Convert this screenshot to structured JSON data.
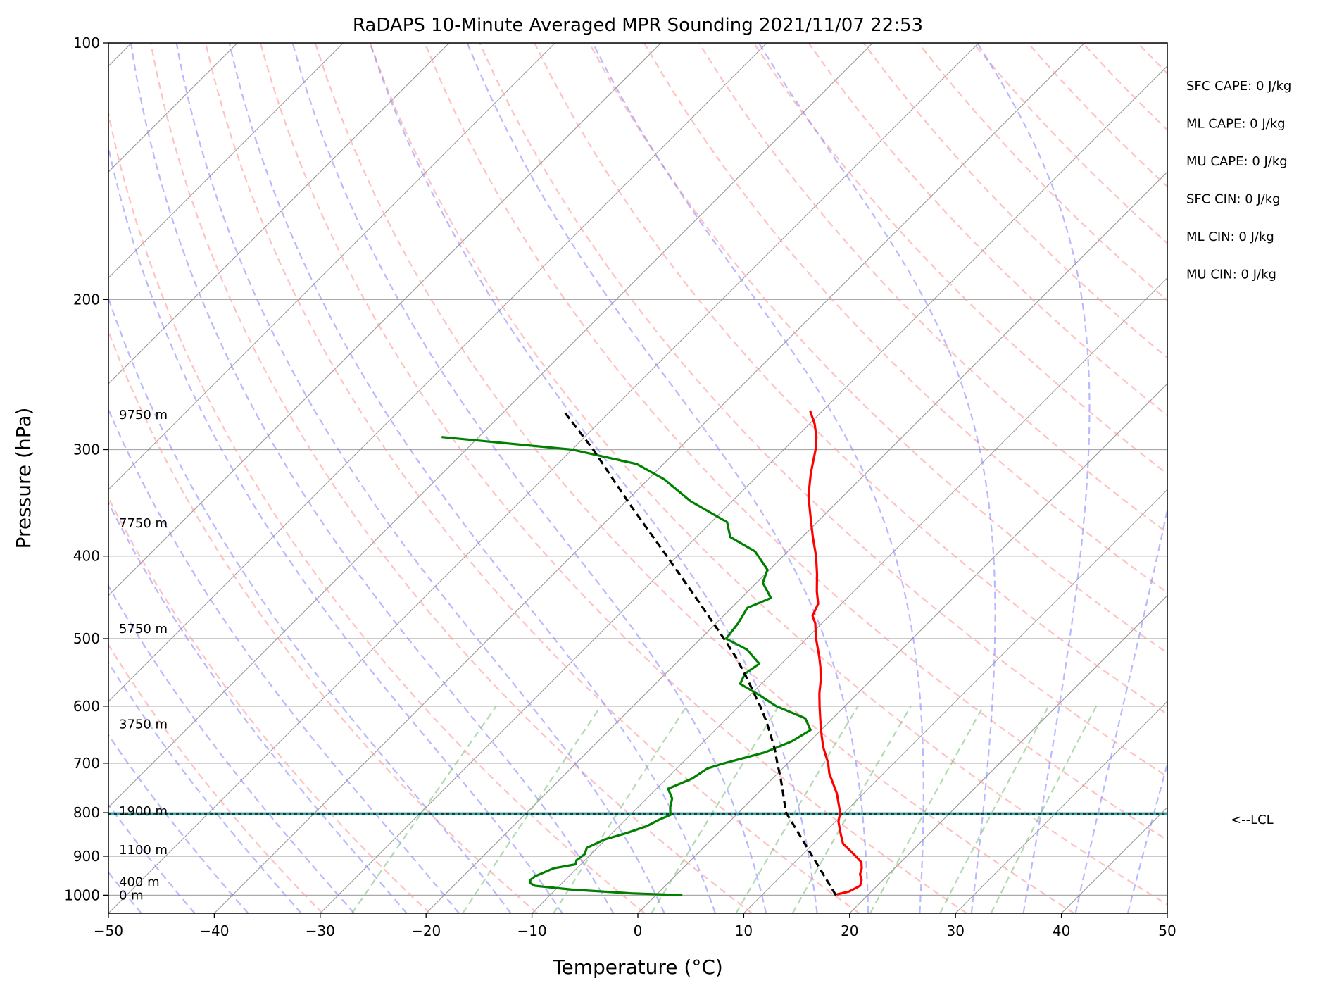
{
  "chart_data": {
    "type": "line",
    "title": "RaDAPS 10-Minute Averaged MPR Sounding 2021/11/07 22:53",
    "xlabel": "Temperature (°C)",
    "ylabel": "Pressure (hPa)",
    "xlim": [
      -50,
      50
    ],
    "ylim": [
      1050,
      100
    ],
    "y_scale": "log",
    "skew": "skew-T, isotherms slanted about 45 degrees",
    "xticks": [
      -50,
      -40,
      -30,
      -20,
      -10,
      0,
      10,
      20,
      30,
      40,
      50
    ],
    "xtick_labels": [
      "−50",
      "−40",
      "−30",
      "−20",
      "−10",
      "0",
      "10",
      "20",
      "30",
      "40",
      "50"
    ],
    "yticks": [
      100,
      200,
      300,
      400,
      500,
      600,
      700,
      800,
      900,
      1000
    ],
    "ytick_labels": [
      "100",
      "200",
      "300",
      "400",
      "500",
      "600",
      "700",
      "800",
      "900",
      "1000"
    ],
    "grid": true,
    "series": [
      {
        "role": "temperature",
        "color": "#ff0000",
        "points": [
          [
            998,
            17.0
          ],
          [
            990,
            17.9
          ],
          [
            975,
            18.4
          ],
          [
            960,
            18.0
          ],
          [
            945,
            17.3
          ],
          [
            930,
            16.9
          ],
          [
            915,
            16.3
          ],
          [
            900,
            15.2
          ],
          [
            870,
            12.8
          ],
          [
            850,
            11.8
          ],
          [
            840,
            11.3
          ],
          [
            820,
            10.3
          ],
          [
            800,
            9.6
          ],
          [
            760,
            7.5
          ],
          [
            720,
            4.9
          ],
          [
            700,
            3.8
          ],
          [
            670,
            1.8
          ],
          [
            650,
            0.6
          ],
          [
            630,
            -0.6
          ],
          [
            600,
            -2.4
          ],
          [
            580,
            -3.6
          ],
          [
            560,
            -4.7
          ],
          [
            540,
            -6.0
          ],
          [
            525,
            -7.1
          ],
          [
            500,
            -9.1
          ],
          [
            480,
            -10.6
          ],
          [
            470,
            -11.6
          ],
          [
            455,
            -12.2
          ],
          [
            440,
            -13.5
          ],
          [
            420,
            -15.1
          ],
          [
            400,
            -16.9
          ],
          [
            380,
            -19.0
          ],
          [
            360,
            -21.1
          ],
          [
            340,
            -23.3
          ],
          [
            320,
            -25.2
          ],
          [
            300,
            -27.0
          ],
          [
            290,
            -28.1
          ],
          [
            280,
            -29.5
          ],
          [
            270,
            -31.2
          ]
        ]
      },
      {
        "role": "dewpoint",
        "color": "#008000",
        "points": [
          [
            1000,
            2.5
          ],
          [
            995,
            -2.5
          ],
          [
            985,
            -8.5
          ],
          [
            975,
            -12.3
          ],
          [
            968,
            -13.0
          ],
          [
            960,
            -13.3
          ],
          [
            950,
            -13.2
          ],
          [
            930,
            -12.2
          ],
          [
            920,
            -10.5
          ],
          [
            910,
            -10.8
          ],
          [
            895,
            -10.6
          ],
          [
            880,
            -11.0
          ],
          [
            860,
            -10.1
          ],
          [
            845,
            -8.6
          ],
          [
            830,
            -7.4
          ],
          [
            815,
            -6.8
          ],
          [
            805,
            -6.2
          ],
          [
            790,
            -6.9
          ],
          [
            770,
            -7.6
          ],
          [
            750,
            -8.9
          ],
          [
            730,
            -7.6
          ],
          [
            710,
            -7.1
          ],
          [
            700,
            -6.0
          ],
          [
            680,
            -3.2
          ],
          [
            660,
            -1.7
          ],
          [
            640,
            -1.0
          ],
          [
            620,
            -2.6
          ],
          [
            600,
            -6.5
          ],
          [
            580,
            -9.5
          ],
          [
            565,
            -12.0
          ],
          [
            550,
            -12.5
          ],
          [
            535,
            -12.1
          ],
          [
            515,
            -14.6
          ],
          [
            500,
            -17.6
          ],
          [
            480,
            -17.9
          ],
          [
            460,
            -18.5
          ],
          [
            448,
            -17.2
          ],
          [
            430,
            -19.4
          ],
          [
            415,
            -20.2
          ],
          [
            395,
            -23.1
          ],
          [
            380,
            -26.8
          ],
          [
            365,
            -28.5
          ],
          [
            345,
            -33.9
          ],
          [
            325,
            -38.5
          ],
          [
            312,
            -42.5
          ],
          [
            300,
            -50.0
          ],
          [
            290,
            -63.5
          ]
        ]
      },
      {
        "role": "parcel",
        "color": "#000000",
        "style": "dashed",
        "points": [
          [
            1000,
            17.0
          ],
          [
            800,
            4.5
          ],
          [
            775,
            3.2
          ],
          [
            750,
            1.9
          ],
          [
            725,
            0.5
          ],
          [
            700,
            -1.0
          ],
          [
            675,
            -2.5
          ],
          [
            650,
            -4.2
          ],
          [
            625,
            -6.0
          ],
          [
            600,
            -8.0
          ],
          [
            575,
            -10.2
          ],
          [
            550,
            -12.5
          ],
          [
            525,
            -15.0
          ],
          [
            500,
            -17.8
          ],
          [
            450,
            -24.0
          ],
          [
            400,
            -31.0
          ],
          [
            350,
            -39.0
          ],
          [
            300,
            -48.0
          ],
          [
            270,
            -54.5
          ]
        ]
      }
    ],
    "lcl_pressure": 803,
    "lcl_label": "<--LCL",
    "height_labels": [
      {
        "p": 1000,
        "label": "0 m"
      },
      {
        "p": 965,
        "label": "400 m"
      },
      {
        "p": 885,
        "label": "1100 m"
      },
      {
        "p": 797,
        "label": "1900 m"
      },
      {
        "p": 630,
        "label": "3750 m"
      },
      {
        "p": 487,
        "label": "5750 m"
      },
      {
        "p": 366,
        "label": "7750 m"
      },
      {
        "p": 273,
        "label": "9750 m"
      }
    ],
    "indices": [
      "SFC CAPE: 0 J/kg",
      "ML CAPE: 0 J/kg",
      "MU CAPE: 0 J/kg",
      "SFC CIN: 0 J/kg",
      "ML CIN: 0 J/kg",
      "MU CIN: 0 J/kg"
    ],
    "reference_lines": {
      "isotherms": "#808080",
      "dry_adiabats": "#ff9999",
      "moist_adiabats": "#8080ff",
      "mixing_ratio": "#80c080",
      "lcl_line": "#20b2aa"
    }
  }
}
